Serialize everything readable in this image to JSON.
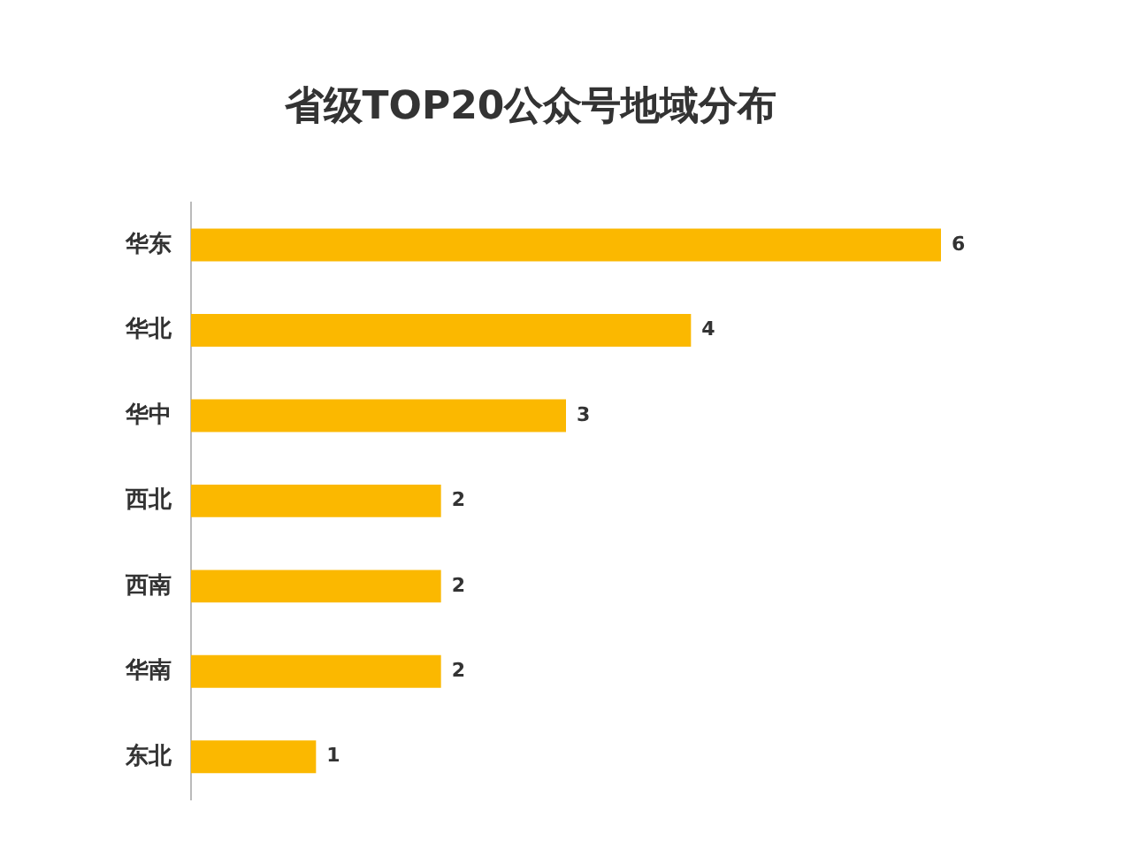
{
  "chart_data": {
    "type": "bar",
    "orientation": "horizontal",
    "title": "省级TOP20公众号地域分布",
    "categories": [
      "华东",
      "华北",
      "华中",
      "西北",
      "西南",
      "华南",
      "东北"
    ],
    "values": [
      6,
      4,
      3,
      2,
      2,
      2,
      1
    ],
    "color": "#fbb800",
    "data_labels": true,
    "legend": false
  }
}
